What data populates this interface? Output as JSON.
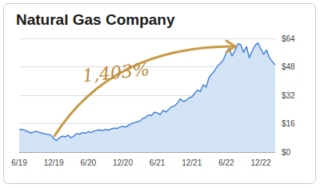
{
  "chart_data": {
    "type": "line",
    "title": "Natural Gas Company",
    "annotation": "1,403%",
    "categories": [
      "6/19",
      null,
      null,
      null,
      null,
      null,
      null,
      null,
      null,
      null,
      null,
      null,
      "12/19",
      null,
      null,
      null,
      null,
      null,
      null,
      null,
      null,
      null,
      null,
      null,
      "6/20",
      null,
      null,
      null,
      null,
      null,
      null,
      null,
      null,
      null,
      null,
      null,
      "12/20",
      null,
      null,
      null,
      null,
      null,
      null,
      null,
      null,
      null,
      null,
      null,
      "6/21",
      null,
      null,
      null,
      null,
      null,
      null,
      null,
      null,
      null,
      null,
      null,
      "12/21",
      null,
      null,
      null,
      null,
      null,
      null,
      null,
      null,
      null,
      null,
      null,
      "6/22",
      null,
      null,
      null,
      null,
      null,
      null,
      null,
      null,
      null,
      null,
      null,
      "12/22",
      null,
      null,
      null,
      null,
      null
    ],
    "values": [
      12.5,
      12.8,
      12.2,
      11.5,
      10.8,
      11.2,
      11.8,
      11.0,
      10.6,
      10.2,
      10.0,
      9.5,
      7.5,
      6.5,
      8.0,
      9.0,
      8.5,
      9.5,
      8.0,
      9.0,
      10.5,
      10.0,
      11.0,
      10.5,
      11.5,
      11.0,
      11.8,
      12.2,
      12.5,
      12.0,
      12.8,
      12.3,
      13.0,
      13.5,
      13.2,
      14.0,
      14.5,
      14.0,
      15.0,
      16.0,
      16.5,
      17.0,
      17.5,
      19.0,
      19.5,
      21.0,
      20.5,
      22.5,
      22.0,
      21.0,
      23.5,
      22.5,
      24.0,
      25.5,
      26.0,
      27.5,
      30.0,
      28.5,
      29.0,
      30.5,
      31.0,
      33.0,
      35.0,
      34.0,
      38.0,
      36.5,
      42.0,
      44.0,
      46.0,
      48.5,
      50.0,
      52.0,
      56.0,
      58.5,
      54.0,
      57.0,
      61.0,
      60.5,
      56.0,
      59.5,
      53.0,
      57.0,
      60.0,
      61.5,
      58.0,
      55.0,
      57.5,
      53.0,
      51.0,
      49.0
    ],
    "color": "#3b7dd8",
    "ylim": [
      0,
      64
    ],
    "yticks": [
      {
        "value": 0,
        "label": "$0"
      },
      {
        "value": 16,
        "label": "$16"
      },
      {
        "value": 32,
        "label": "$32"
      },
      {
        "value": 48,
        "label": "$48"
      },
      {
        "value": 64,
        "label": "$64"
      }
    ],
    "grid": true
  }
}
